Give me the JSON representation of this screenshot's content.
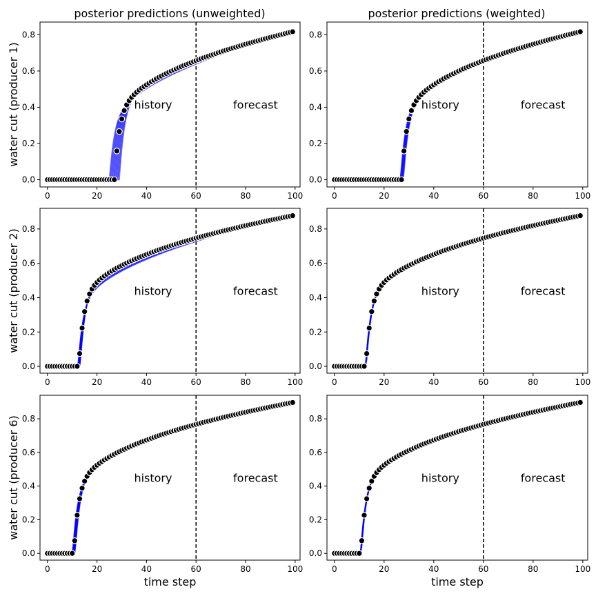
{
  "figure": {
    "col_titles": [
      "posterior predictions (unweighted)",
      "posterior predictions (weighted)"
    ],
    "row_labels": [
      "water cut (producer 1)",
      "water cut (producer 2)",
      "water cut (producer 6)"
    ],
    "xlabel": "time step",
    "region_labels": {
      "history": "history",
      "forecast": "forecast"
    }
  },
  "colors": {
    "ensemble": "#0000ff",
    "observed_fill": "#000000",
    "observed_edge": "#ffffff",
    "divider": "#000000"
  },
  "chart_data": [
    {
      "type": "line",
      "producer": 1,
      "weighting": "unweighted",
      "ylabel": "water cut (producer 1)",
      "xlabel": "",
      "x_ticks": [
        0,
        20,
        40,
        60,
        80,
        100
      ],
      "y_ticks": [
        0.0,
        0.2,
        0.4,
        0.6,
        0.8
      ],
      "xlim": [
        -3,
        102
      ],
      "ylim": [
        -0.04,
        0.87
      ],
      "divider_x": 60,
      "observed": {
        "breakthrough": 27,
        "plateau": 0.82,
        "shape": 0.42,
        "n_points": 100
      },
      "ensemble": {
        "breakthrough_range": [
          25,
          29
        ],
        "shape_range": [
          0.38,
          0.5
        ],
        "opacity": 0.55
      }
    },
    {
      "type": "line",
      "producer": 1,
      "weighting": "weighted",
      "ylabel": "",
      "xlabel": "",
      "x_ticks": [
        0,
        20,
        40,
        60,
        80,
        100
      ],
      "y_ticks": [
        0.0,
        0.2,
        0.4,
        0.6,
        0.8
      ],
      "xlim": [
        -3,
        102
      ],
      "ylim": [
        -0.04,
        0.87
      ],
      "divider_x": 60,
      "observed": {
        "breakthrough": 27,
        "plateau": 0.82,
        "shape": 0.42,
        "n_points": 100
      },
      "ensemble": {
        "breakthrough_range": [
          26.5,
          27.8
        ],
        "shape_range": [
          0.41,
          0.44
        ],
        "opacity": 0.45
      }
    },
    {
      "type": "line",
      "producer": 2,
      "weighting": "unweighted",
      "ylabel": "water cut (producer 2)",
      "xlabel": "",
      "x_ticks": [
        0,
        20,
        40,
        60,
        80,
        100
      ],
      "y_ticks": [
        0.0,
        0.2,
        0.4,
        0.6,
        0.8
      ],
      "xlim": [
        -3,
        102
      ],
      "ylim": [
        -0.04,
        0.92
      ],
      "divider_x": 60,
      "observed": {
        "breakthrough": 12.6,
        "plateau": 0.88,
        "shape": 0.4,
        "n_points": 100
      },
      "ensemble": {
        "breakthrough_range": [
          12.3,
          13.2
        ],
        "shape_range": [
          0.37,
          0.47
        ],
        "opacity": 0.55
      }
    },
    {
      "type": "line",
      "producer": 2,
      "weighting": "weighted",
      "ylabel": "",
      "xlabel": "",
      "x_ticks": [
        0,
        20,
        40,
        60,
        80,
        100
      ],
      "y_ticks": [
        0.0,
        0.2,
        0.4,
        0.6,
        0.8
      ],
      "xlim": [
        -3,
        102
      ],
      "ylim": [
        -0.04,
        0.92
      ],
      "divider_x": 60,
      "observed": {
        "breakthrough": 12.6,
        "plateau": 0.88,
        "shape": 0.4,
        "n_points": 100
      },
      "ensemble": {
        "breakthrough_range": [
          12.5,
          12.8
        ],
        "shape_range": [
          0.395,
          0.405
        ],
        "opacity": 0.5
      }
    },
    {
      "type": "line",
      "producer": 6,
      "weighting": "unweighted",
      "ylabel": "water cut (producer 6)",
      "xlabel": "time step",
      "x_ticks": [
        0,
        20,
        40,
        60,
        80,
        100
      ],
      "y_ticks": [
        0.0,
        0.2,
        0.4,
        0.6,
        0.8
      ],
      "xlim": [
        -3,
        102
      ],
      "ylim": [
        -0.04,
        0.94
      ],
      "divider_x": 60,
      "observed": {
        "breakthrough": 10.6,
        "plateau": 0.9,
        "shape": 0.4,
        "n_points": 100
      },
      "ensemble": {
        "breakthrough_range": [
          10.1,
          11.2
        ],
        "shape_range": [
          0.38,
          0.43
        ],
        "opacity": 0.55
      }
    },
    {
      "type": "line",
      "producer": 6,
      "weighting": "weighted",
      "ylabel": "",
      "xlabel": "time step",
      "x_ticks": [
        0,
        20,
        40,
        60,
        80,
        100
      ],
      "y_ticks": [
        0.0,
        0.2,
        0.4,
        0.6,
        0.8
      ],
      "xlim": [
        -3,
        102
      ],
      "ylim": [
        -0.04,
        0.94
      ],
      "divider_x": 60,
      "observed": {
        "breakthrough": 10.6,
        "plateau": 0.9,
        "shape": 0.4,
        "n_points": 100
      },
      "ensemble": {
        "breakthrough_range": [
          10.5,
          10.8
        ],
        "shape_range": [
          0.395,
          0.405
        ],
        "opacity": 0.5
      }
    }
  ]
}
